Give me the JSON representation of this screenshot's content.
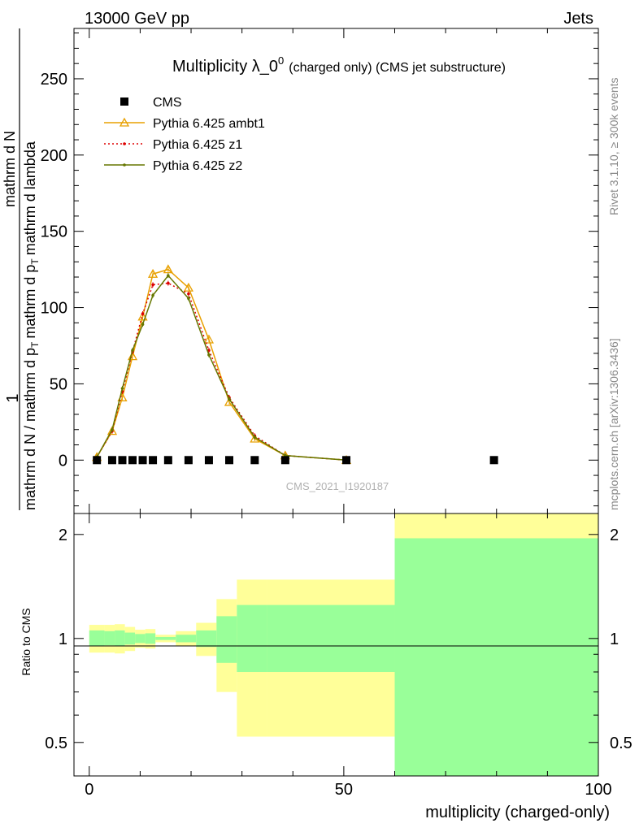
{
  "header": {
    "energy": "13000 GeV pp",
    "process": "Jets",
    "title_main": "Multiplicity λ_0",
    "title_sup": "0",
    "title_rest": "(charged only) (CMS jet substructure)",
    "analysis_id": "CMS_2021_I1920187",
    "side_rivet": "Rivet 3.1.10, ≥ 300k events",
    "side_site": "mcplots.cern.ch [arXiv:1306.3436]"
  },
  "axes": {
    "ylabel_main_top": "1",
    "ylabel_main_line1": "mathrm d N / mathrm d p",
    "ylabel_main_line1_sub": "T",
    "ylabel_main_line2": "mathrm d N",
    "ylabel_main_line3": "mathrm d p",
    "ylabel_main_line3_sub": "T",
    "ylabel_main_line4": "mathrm d lambda",
    "ylabel_ratio": "Ratio to CMS",
    "xlabel": "multiplicity (charged-only)",
    "x_ticks": [
      "0",
      "50",
      "100"
    ],
    "y_ticks_main": [
      "0",
      "50",
      "100",
      "150",
      "200",
      "250"
    ],
    "y_ticks_ratio": [
      "0.5",
      "1",
      "2"
    ]
  },
  "legend": [
    {
      "label": "CMS",
      "color": "#000000",
      "marker": "square"
    },
    {
      "label": "Pythia 6.425 ambt1",
      "color": "#e8a000",
      "marker": "triangle"
    },
    {
      "label": "Pythia 6.425 z1",
      "color": "#dd0000",
      "marker": "dot"
    },
    {
      "label": "Pythia 6.425 z2",
      "color": "#667700",
      "marker": "dot"
    }
  ],
  "chart_data": {
    "type": "line",
    "xlim": [
      -3,
      100
    ],
    "ylim": [
      -35,
      283
    ],
    "ratio_ylim": [
      0.4,
      2.3
    ],
    "ratio_scale": "log",
    "grid": false,
    "cms": {
      "x": [
        1.5,
        4.5,
        6.5,
        8.5,
        10.5,
        12.5,
        15.5,
        19.5,
        23.5,
        27.5,
        32.5,
        38.5,
        50.5,
        79.5
      ],
      "y": [
        0,
        0,
        0,
        0,
        0,
        0,
        0,
        0,
        0,
        0,
        0,
        0,
        0,
        0
      ]
    },
    "series": [
      {
        "name": "Pythia 6.425 ambt1",
        "color": "#e8a000",
        "x": [
          1.5,
          4.5,
          6.5,
          8.5,
          10.5,
          12.5,
          15.5,
          19.5,
          23.5,
          27.5,
          32.5,
          38.5,
          50.5
        ],
        "y": [
          2,
          19,
          41,
          68,
          94,
          122,
          125,
          113,
          79,
          38,
          14,
          3,
          0
        ]
      },
      {
        "name": "Pythia 6.425 z1",
        "color": "#dd0000",
        "x": [
          1.5,
          4.5,
          6.5,
          8.5,
          10.5,
          12.5,
          15.5,
          19.5,
          23.5,
          27.5,
          32.5,
          38.5,
          50.5
        ],
        "y": [
          2,
          19,
          45,
          71,
          96,
          115,
          116,
          109,
          72,
          41,
          16,
          3,
          0
        ]
      },
      {
        "name": "Pythia 6.425 z2",
        "color": "#667700",
        "x": [
          1.5,
          4.5,
          6.5,
          8.5,
          10.5,
          12.5,
          15.5,
          19.5,
          23.5,
          27.5,
          32.5,
          38.5,
          50.5
        ],
        "y": [
          2,
          20,
          47,
          72,
          89,
          108,
          121,
          106,
          69,
          40,
          15,
          3,
          0
        ]
      }
    ],
    "ratio_bands": {
      "edges": [
        0,
        3,
        5,
        7,
        9,
        11,
        13,
        17,
        21,
        25,
        29,
        35,
        60,
        100
      ],
      "yellow_lo": [
        0.91,
        0.91,
        0.905,
        0.92,
        0.94,
        0.935,
        0.975,
        0.95,
        0.89,
        0.7,
        0.52,
        0.52,
        0.2
      ],
      "yellow_hi": [
        1.095,
        1.095,
        1.1,
        1.08,
        1.06,
        1.065,
        1.025,
        1.05,
        1.11,
        1.3,
        1.48,
        1.48,
        3.0
      ],
      "green_lo": [
        0.95,
        0.955,
        0.95,
        0.96,
        0.97,
        0.965,
        0.99,
        0.975,
        0.945,
        0.85,
        0.8,
        0.8,
        0.2
      ],
      "green_hi": [
        1.055,
        1.05,
        1.055,
        1.04,
        1.03,
        1.035,
        1.01,
        1.025,
        1.055,
        1.16,
        1.25,
        1.25,
        1.95
      ]
    }
  }
}
